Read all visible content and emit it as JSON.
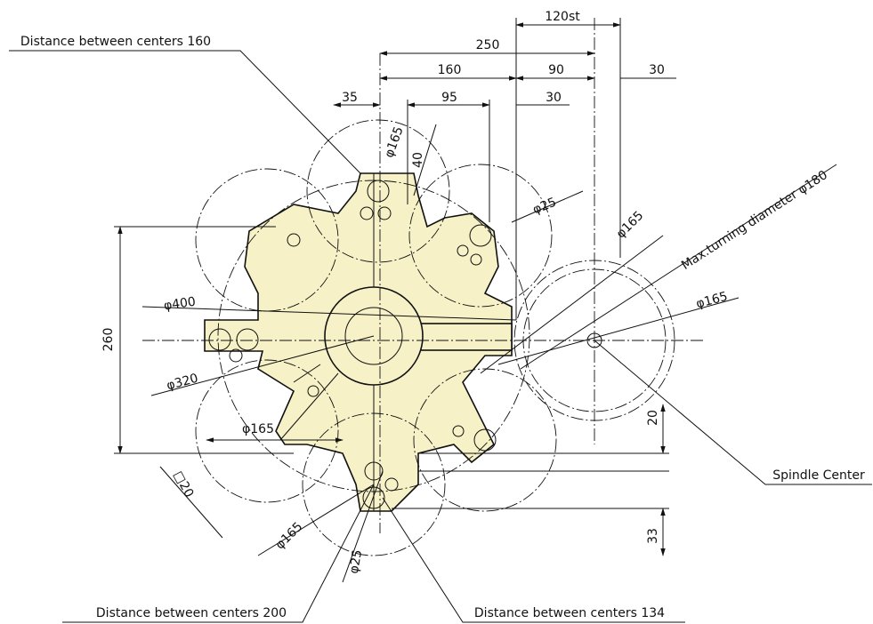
{
  "callouts": [
    "Distance between centers 160",
    "Distance between centers 200",
    "Distance between centers 134",
    "Spindle Center",
    "Max.turning diameter φ180"
  ],
  "dimensions": [
    "120st",
    "250",
    "160",
    "90",
    "30",
    "35",
    "95",
    "30",
    "φ165",
    "40",
    "φ25",
    "φ165",
    "φ165",
    "φ400",
    "260",
    "φ320",
    "φ165",
    "20",
    "□20",
    "φ165",
    "φ25",
    "33"
  ]
}
